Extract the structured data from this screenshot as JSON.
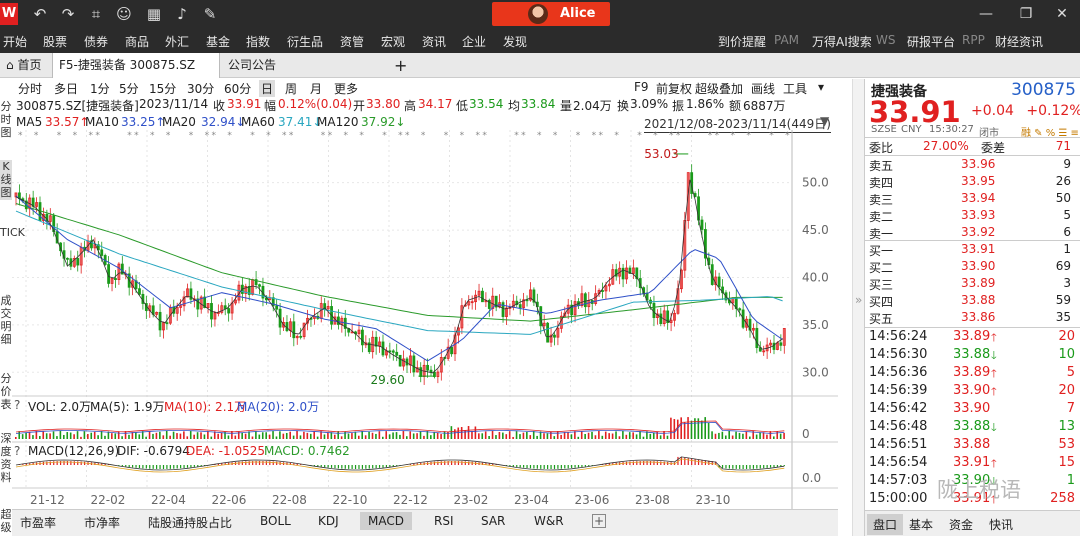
{
  "titlebar": {
    "logo": "W",
    "user": "Alice"
  },
  "menu": {
    "left": [
      "开始",
      "股票",
      "债券",
      "商品",
      "外汇",
      "基金",
      "指数",
      "衍生品",
      "资管",
      "宏观",
      "资讯",
      "企业",
      "发现"
    ],
    "right": [
      {
        "label": "到价提醒",
        "code": "PAM"
      },
      {
        "label": "万得AI搜索",
        "code": "WS"
      },
      {
        "label": "研报平台",
        "code": "RPP"
      },
      {
        "label": "财经资讯",
        "code": ""
      }
    ]
  },
  "tabs": [
    "首页",
    "F5-捷强装备 300875.SZ",
    "公司公告"
  ],
  "periods": [
    "分时",
    "多日",
    "1分",
    "5分",
    "15分",
    "30分",
    "60分",
    "日",
    "周",
    "月",
    "更多"
  ],
  "period_selected": "日",
  "period_right": [
    "F9",
    "前复权",
    "超级叠加",
    "画线",
    "工具"
  ],
  "side_labels": [
    "分时图",
    "K线图",
    "TICK",
    "成交明细",
    "分价表",
    "深度资料",
    "超级"
  ],
  "info": {
    "code": "300875.SZ[捷强装备]",
    "date": "2023/11/14",
    "close_label": "收",
    "close": "33.91",
    "range_label": "幅",
    "range": "0.12%(0.04)",
    "open_label": "开",
    "open": "33.80",
    "high_label": "高",
    "high": "34.17",
    "low_label": "低",
    "low": "33.54",
    "avg_label": "均",
    "avg": "33.84",
    "vol_label": "量",
    "vol": "2.04万",
    "turn_label": "换",
    "turn": "3.09%",
    "amp_label": "振",
    "amp": "1.86%",
    "amt_label": "额",
    "amt": "6887万"
  },
  "ma": [
    {
      "label": "MA5",
      "value": "33.57↑",
      "color": "#333333"
    },
    {
      "label": "MA10",
      "value": "33.25↑",
      "color": "#2f50c8"
    },
    {
      "label": "MA20",
      "value": "32.94↓",
      "color": "#2f50c8"
    },
    {
      "label": "MA60",
      "value": "37.41↓",
      "color": "#2aa7c0"
    },
    {
      "label": "MA120",
      "value": "37.92↓",
      "color": "#2a9a2a"
    }
  ],
  "date_range": "2021/12/08-2023/11/14(449日)",
  "vol_legend": {
    "title": "VOL: 2.0万",
    "ma5": "MA(5): 1.9万",
    "ma10": "MA(10): 2.1万",
    "ma20": "MA(20): 2.0万"
  },
  "macd_legend": {
    "title": "MACD(12,26,9)",
    "dif": "DIF: -0.6794",
    "dea": "DEA: -1.0525",
    "macd": "MACD: 0.7462"
  },
  "chart_data": {
    "type": "candlestick",
    "y_ticks": [
      "50.0",
      "45.0",
      "40.0",
      "35.0",
      "30.0"
    ],
    "ylim": [
      27.5,
      54.5
    ],
    "x_ticks": [
      "21-12",
      "22-02",
      "22-04",
      "22-06",
      "22-08",
      "22-10",
      "22-12",
      "23-02",
      "23-04",
      "23-06",
      "23-08",
      "23-10"
    ],
    "annotations": [
      {
        "label": "53.03",
        "kind": "high"
      },
      {
        "label": "29.60",
        "kind": "low"
      }
    ],
    "close_series": [
      [
        0,
        48.5
      ],
      [
        10,
        47.6
      ],
      [
        20,
        45.8
      ],
      [
        30,
        41.2
      ],
      [
        38,
        42.5
      ],
      [
        45,
        44.0
      ],
      [
        50,
        42.0
      ],
      [
        55,
        39.6
      ],
      [
        62,
        40.8
      ],
      [
        70,
        38.6
      ],
      [
        78,
        36.5
      ],
      [
        86,
        35.0
      ],
      [
        94,
        37.0
      ],
      [
        100,
        38.2
      ],
      [
        108,
        37.2
      ],
      [
        116,
        36.2
      ],
      [
        124,
        36.8
      ],
      [
        132,
        38.8
      ],
      [
        140,
        39.2
      ],
      [
        148,
        37.5
      ],
      [
        156,
        35.0
      ],
      [
        164,
        33.8
      ],
      [
        172,
        35.8
      ],
      [
        180,
        36.8
      ],
      [
        188,
        35.2
      ],
      [
        196,
        34.4
      ],
      [
        204,
        33.0
      ],
      [
        212,
        32.8
      ],
      [
        220,
        31.8
      ],
      [
        228,
        31.0
      ],
      [
        236,
        30.2
      ],
      [
        244,
        29.9
      ],
      [
        250,
        31.5
      ],
      [
        256,
        33.6
      ],
      [
        262,
        37.5
      ],
      [
        270,
        38.0
      ],
      [
        278,
        37.2
      ],
      [
        286,
        36.6
      ],
      [
        294,
        37.4
      ],
      [
        302,
        38.0
      ],
      [
        310,
        33.2
      ],
      [
        316,
        34.8
      ],
      [
        322,
        36.8
      ],
      [
        330,
        37.4
      ],
      [
        338,
        37.8
      ],
      [
        346,
        39.8
      ],
      [
        354,
        40.8
      ],
      [
        362,
        40.2
      ],
      [
        370,
        36.6
      ],
      [
        376,
        35.8
      ],
      [
        382,
        35.2
      ],
      [
        388,
        40.5
      ],
      [
        392,
        51.0
      ],
      [
        396,
        48.2
      ],
      [
        400,
        44.2
      ],
      [
        406,
        39.8
      ],
      [
        414,
        38.0
      ],
      [
        420,
        36.8
      ],
      [
        428,
        34.6
      ],
      [
        434,
        32.4
      ],
      [
        440,
        32.6
      ],
      [
        446,
        33.4
      ],
      [
        449,
        33.9
      ]
    ],
    "ma120_series": [
      [
        0,
        47.8
      ],
      [
        60,
        44.5
      ],
      [
        120,
        40.5
      ],
      [
        180,
        38.0
      ],
      [
        240,
        36.0
      ],
      [
        300,
        35.4
      ],
      [
        360,
        36.6
      ],
      [
        420,
        37.9
      ],
      [
        449,
        37.9
      ]
    ],
    "ma60_series": [
      [
        0,
        47.0
      ],
      [
        60,
        42.5
      ],
      [
        120,
        39.0
      ],
      [
        180,
        36.6
      ],
      [
        240,
        34.4
      ],
      [
        300,
        34.0
      ],
      [
        360,
        37.4
      ],
      [
        400,
        37.6
      ],
      [
        440,
        38.0
      ],
      [
        449,
        37.4
      ]
    ],
    "ma20_series": [
      [
        0,
        48.6
      ],
      [
        30,
        44.0
      ],
      [
        60,
        41.0
      ],
      [
        90,
        36.8
      ],
      [
        120,
        38.4
      ],
      [
        150,
        37.2
      ],
      [
        180,
        35.6
      ],
      [
        210,
        34.6
      ],
      [
        240,
        31.2
      ],
      [
        260,
        33.4
      ],
      [
        280,
        37.2
      ],
      [
        310,
        36.2
      ],
      [
        340,
        37.6
      ],
      [
        370,
        38.4
      ],
      [
        395,
        43.0
      ],
      [
        410,
        42.0
      ],
      [
        430,
        35.6
      ],
      [
        449,
        33.2
      ]
    ]
  },
  "right": {
    "name": "捷强装备",
    "code": "300875",
    "price": "33.91",
    "change": "+0.04",
    "change_pct": "+0.12%",
    "exchange": "SZSE",
    "currency": "CNY",
    "time": "15:30:27",
    "status": "闭市",
    "ratio_label": "委比",
    "ratio": "27.00%",
    "diff_label": "委差",
    "diff": "71",
    "asks": [
      {
        "label": "卖五",
        "price": "33.96",
        "vol": "9"
      },
      {
        "label": "卖四",
        "price": "33.95",
        "vol": "26"
      },
      {
        "label": "卖三",
        "price": "33.94",
        "vol": "50"
      },
      {
        "label": "卖二",
        "price": "33.93",
        "vol": "5"
      },
      {
        "label": "卖一",
        "price": "33.92",
        "vol": "6"
      }
    ],
    "bids": [
      {
        "label": "买一",
        "price": "33.91",
        "vol": "1"
      },
      {
        "label": "买二",
        "price": "33.90",
        "vol": "69"
      },
      {
        "label": "买三",
        "price": "33.89",
        "vol": "3"
      },
      {
        "label": "买四",
        "price": "33.88",
        "vol": "59"
      },
      {
        "label": "买五",
        "price": "33.86",
        "vol": "35"
      }
    ],
    "ticks": [
      {
        "time": "14:56:24",
        "price": "33.89",
        "dir": "up",
        "vol": "20"
      },
      {
        "time": "14:56:30",
        "price": "33.88",
        "dir": "down",
        "vol": "10"
      },
      {
        "time": "14:56:36",
        "price": "33.89",
        "dir": "up",
        "vol": "5"
      },
      {
        "time": "14:56:39",
        "price": "33.90",
        "dir": "up",
        "vol": "20"
      },
      {
        "time": "14:56:42",
        "price": "33.90",
        "dir": "",
        "vol": "7"
      },
      {
        "time": "14:56:48",
        "price": "33.88",
        "dir": "down",
        "vol": "13"
      },
      {
        "time": "14:56:51",
        "price": "33.88",
        "dir": "",
        "vol": "53"
      },
      {
        "time": "14:56:54",
        "price": "33.91",
        "dir": "up",
        "vol": "15"
      },
      {
        "time": "14:57:03",
        "price": "33.90",
        "dir": "down",
        "vol": "1"
      },
      {
        "time": "15:00:00",
        "price": "33.91",
        "dir": "up",
        "vol": "258"
      }
    ],
    "tabs": [
      "盘口",
      "基本",
      "资金",
      "快讯"
    ],
    "watermark": "陇上税语"
  },
  "bottom_tabs": [
    "市盈率",
    "市净率",
    "陆股通持股占比",
    "BOLL",
    "KDJ",
    "MACD",
    "RSI",
    "SAR",
    "W&R"
  ],
  "bottom_selected": "MACD",
  "colors": {
    "up": "#e02020",
    "down": "#1a9a1a",
    "bid_ask_price": "#e02020"
  }
}
